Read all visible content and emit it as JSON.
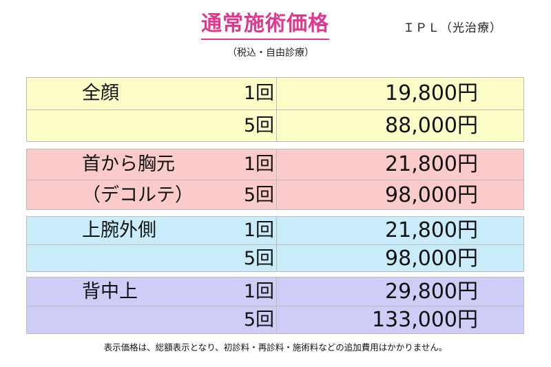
{
  "title": "通常施術価格",
  "subtitle": "（税込・自由診療）",
  "treatment": "ＩＰＬ（光治療）",
  "colors": {
    "accent": "#e0388f"
  },
  "groups": [
    {
      "name1": "全顔",
      "name2": "",
      "color": "#fdfdc8",
      "rows": [
        {
          "count": "1回",
          "price": "19,800円"
        },
        {
          "count": "5回",
          "price": "88,000円"
        }
      ]
    },
    {
      "name1": "首から胸元",
      "name2": "（デコルテ）",
      "color": "#fbcbcb",
      "rows": [
        {
          "count": "1回",
          "price": "21,800円"
        },
        {
          "count": "5回",
          "price": "98,000円"
        }
      ]
    },
    {
      "name1": "上腕外側",
      "name2": "",
      "color": "#c9ecfa",
      "rows": [
        {
          "count": "1回",
          "price": "21,800円"
        },
        {
          "count": "5回",
          "price": "98,000円"
        }
      ]
    },
    {
      "name1": "背中上",
      "name2": "",
      "color": "#cdcdf7",
      "rows": [
        {
          "count": "1回",
          "price": "29,800円"
        },
        {
          "count": "5回",
          "price": "133,000円"
        }
      ]
    }
  ],
  "note": "表示価格は、総額表示となり、初診料・再診料・施術料などの追加費用はかかりません。"
}
